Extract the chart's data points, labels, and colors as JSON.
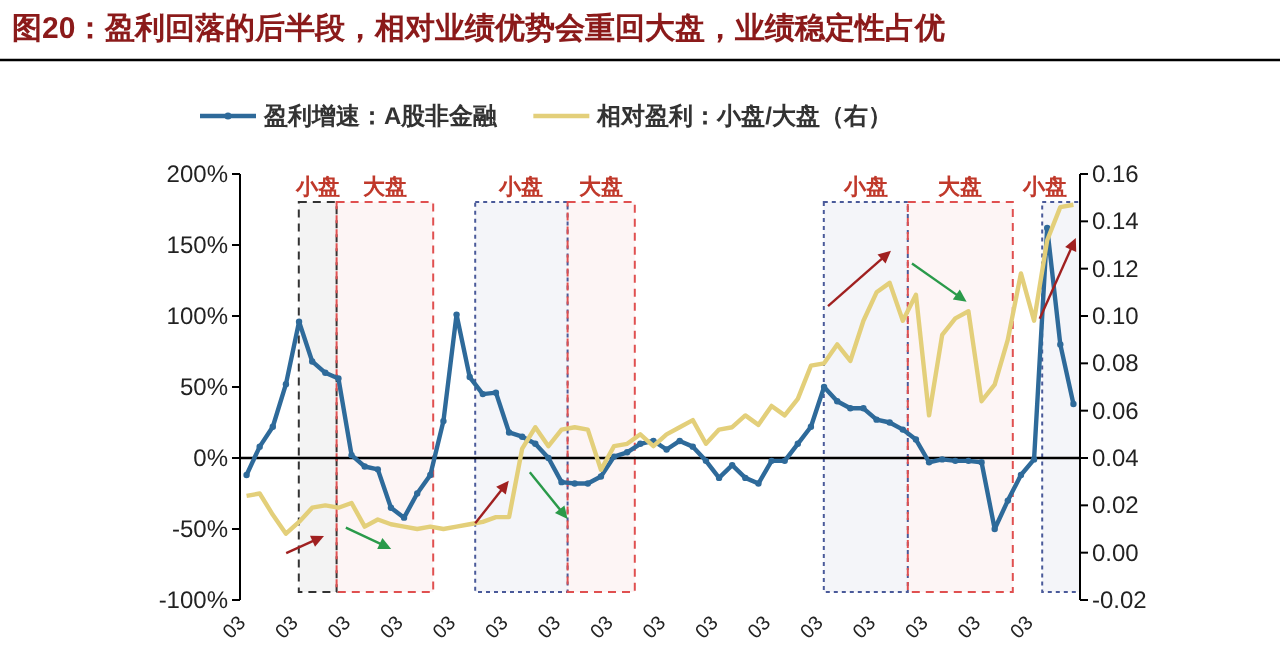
{
  "chart_data": {
    "type": "line",
    "title": "图20：盈利回落的后半段，相对业绩优势会重回大盘，业绩稳定性占优",
    "categories": [
      "03",
      null,
      null,
      null,
      "03",
      null,
      null,
      null,
      "03",
      null,
      null,
      null,
      "03",
      null,
      null,
      null,
      "03",
      null,
      null,
      null,
      "03",
      null,
      null,
      null,
      "03",
      null,
      null,
      null,
      "03",
      null,
      null,
      null,
      "03",
      null,
      null,
      null,
      "03",
      null,
      null,
      null,
      "03",
      null,
      null,
      null,
      "03",
      null,
      null,
      null,
      "03",
      null,
      null,
      null,
      "03",
      null,
      null,
      null,
      "03",
      null,
      null,
      null,
      "03",
      null,
      null,
      null
    ],
    "series": [
      {
        "name": "盈利增速：A股非金融",
        "color": "#2e6a9a",
        "marker": "circle",
        "values": [
          -12,
          8,
          22,
          52,
          96,
          68,
          60,
          56,
          2,
          -6,
          -8,
          -35,
          -42,
          -25,
          -12,
          26,
          101,
          57,
          45,
          46,
          18,
          15,
          10,
          0,
          -17,
          -18,
          -18,
          -13,
          1,
          4,
          10,
          12,
          6,
          12,
          8,
          -2,
          -14,
          -5,
          -14,
          -18,
          -2,
          -2,
          10,
          22,
          50,
          40,
          35,
          35,
          27,
          25,
          20,
          13,
          -3,
          -1,
          -2,
          -2,
          -3,
          -50,
          -30,
          -12,
          -1,
          162,
          80,
          38
        ]
      },
      {
        "name": "相对盈利：小盘/大盘（右）",
        "color": "#e3cf7a",
        "axis": "y2",
        "values": [
          0.024,
          0.025,
          0.016,
          0.008,
          0.013,
          0.019,
          0.02,
          0.019,
          0.021,
          0.011,
          0.014,
          0.012,
          0.011,
          0.01,
          0.011,
          0.01,
          0.011,
          0.012,
          0.013,
          0.015,
          0.015,
          0.044,
          0.053,
          0.045,
          0.052,
          0.053,
          0.052,
          0.035,
          0.045,
          0.046,
          0.05,
          0.045,
          0.05,
          0.053,
          0.056,
          0.046,
          0.052,
          0.053,
          0.058,
          0.054,
          0.062,
          0.058,
          0.065,
          0.079,
          0.08,
          0.088,
          0.081,
          0.098,
          0.11,
          0.114,
          0.098,
          0.109,
          0.058,
          0.092,
          0.099,
          0.102,
          0.064,
          0.071,
          0.09,
          0.118,
          0.098,
          0.132,
          0.146,
          0.147
        ]
      }
    ],
    "ylim": [
      -100,
      200
    ],
    "yticks": [
      {
        "value": -100,
        "label": "-100%"
      },
      {
        "value": -50,
        "label": "-50%"
      },
      {
        "value": 0,
        "label": "0%"
      },
      {
        "value": 50,
        "label": "50%"
      },
      {
        "value": 100,
        "label": "100%"
      },
      {
        "value": 150,
        "label": "150%"
      },
      {
        "value": 200,
        "label": "200%"
      }
    ],
    "y2lim": [
      -0.02,
      0.16
    ],
    "y2ticks": [
      {
        "value": -0.02,
        "label": "-0.02"
      },
      {
        "value": 0,
        "label": "0.00"
      },
      {
        "value": 0.02,
        "label": "0.02"
      },
      {
        "value": 0.04,
        "label": "0.04"
      },
      {
        "value": 0.06,
        "label": "0.06"
      },
      {
        "value": 0.08,
        "label": "0.08"
      },
      {
        "value": 0.1,
        "label": "0.10"
      },
      {
        "value": 0.12,
        "label": "0.12"
      },
      {
        "value": 0.14,
        "label": "0.14"
      },
      {
        "value": 0.16,
        "label": "0.16"
      }
    ],
    "annotations": [
      "小盘",
      "大盘",
      "小盘",
      "大盘",
      "小盘",
      "大盘",
      "小盘"
    ],
    "legend": "top"
  }
}
